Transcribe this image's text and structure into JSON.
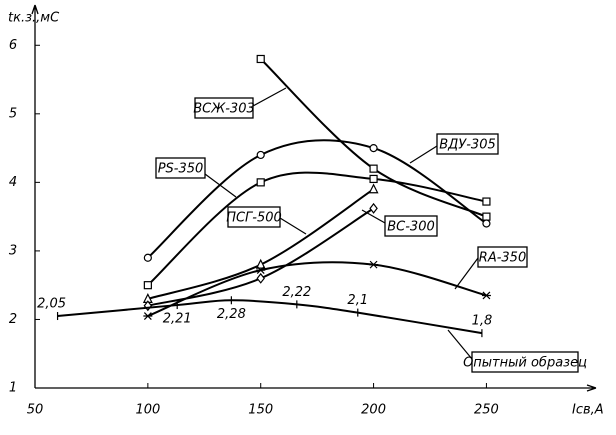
{
  "chart_data": {
    "type": "line",
    "x_label": "Iсв,А",
    "y_label": "tк.з.,мС",
    "xlim": [
      50,
      295
    ],
    "ylim": [
      1,
      6.5
    ],
    "xticks": [
      50,
      100,
      150,
      200,
      250
    ],
    "yticks": [
      1,
      2,
      3,
      4,
      5,
      6
    ],
    "series": [
      {
        "name": "ВСЖ-303",
        "color": "#000000",
        "marker": "square",
        "x": [
          150,
          200,
          250
        ],
        "values": [
          5.8,
          4.2,
          3.5
        ]
      },
      {
        "name": "ВДУ-305",
        "color": "#000000",
        "marker": "circle",
        "x": [
          100,
          150,
          200,
          250
        ],
        "values": [
          2.9,
          4.4,
          4.5,
          3.4
        ]
      },
      {
        "name": "PS-350",
        "color": "#000000",
        "marker": "square",
        "x": [
          100,
          150,
          200,
          250
        ],
        "values": [
          2.5,
          4.0,
          4.05,
          3.72
        ]
      },
      {
        "name": "ПСГ-500",
        "color": "#000000",
        "marker": "triangle",
        "x": [
          100,
          150,
          200
        ],
        "values": [
          2.3,
          2.8,
          3.9
        ]
      },
      {
        "name": "ВС-300",
        "color": "#000000",
        "marker": "diamond",
        "x": [
          100,
          150,
          200
        ],
        "values": [
          2.2,
          2.6,
          3.62
        ]
      },
      {
        "name": "RA-350",
        "color": "#000000",
        "marker": "asterisk",
        "x": [
          100,
          150,
          200,
          250
        ],
        "values": [
          2.05,
          2.72,
          2.8,
          2.35
        ]
      },
      {
        "name": "Опытный образец",
        "color": "#000000",
        "marker": "tick",
        "x": [
          60,
          113,
          137,
          166,
          193,
          248
        ],
        "values": [
          2.05,
          2.21,
          2.28,
          2.22,
          2.1,
          1.8
        ],
        "value_labels": [
          "2,05",
          "2,21",
          "2,28",
          "2,22",
          "2,1",
          "1,8"
        ]
      }
    ]
  }
}
